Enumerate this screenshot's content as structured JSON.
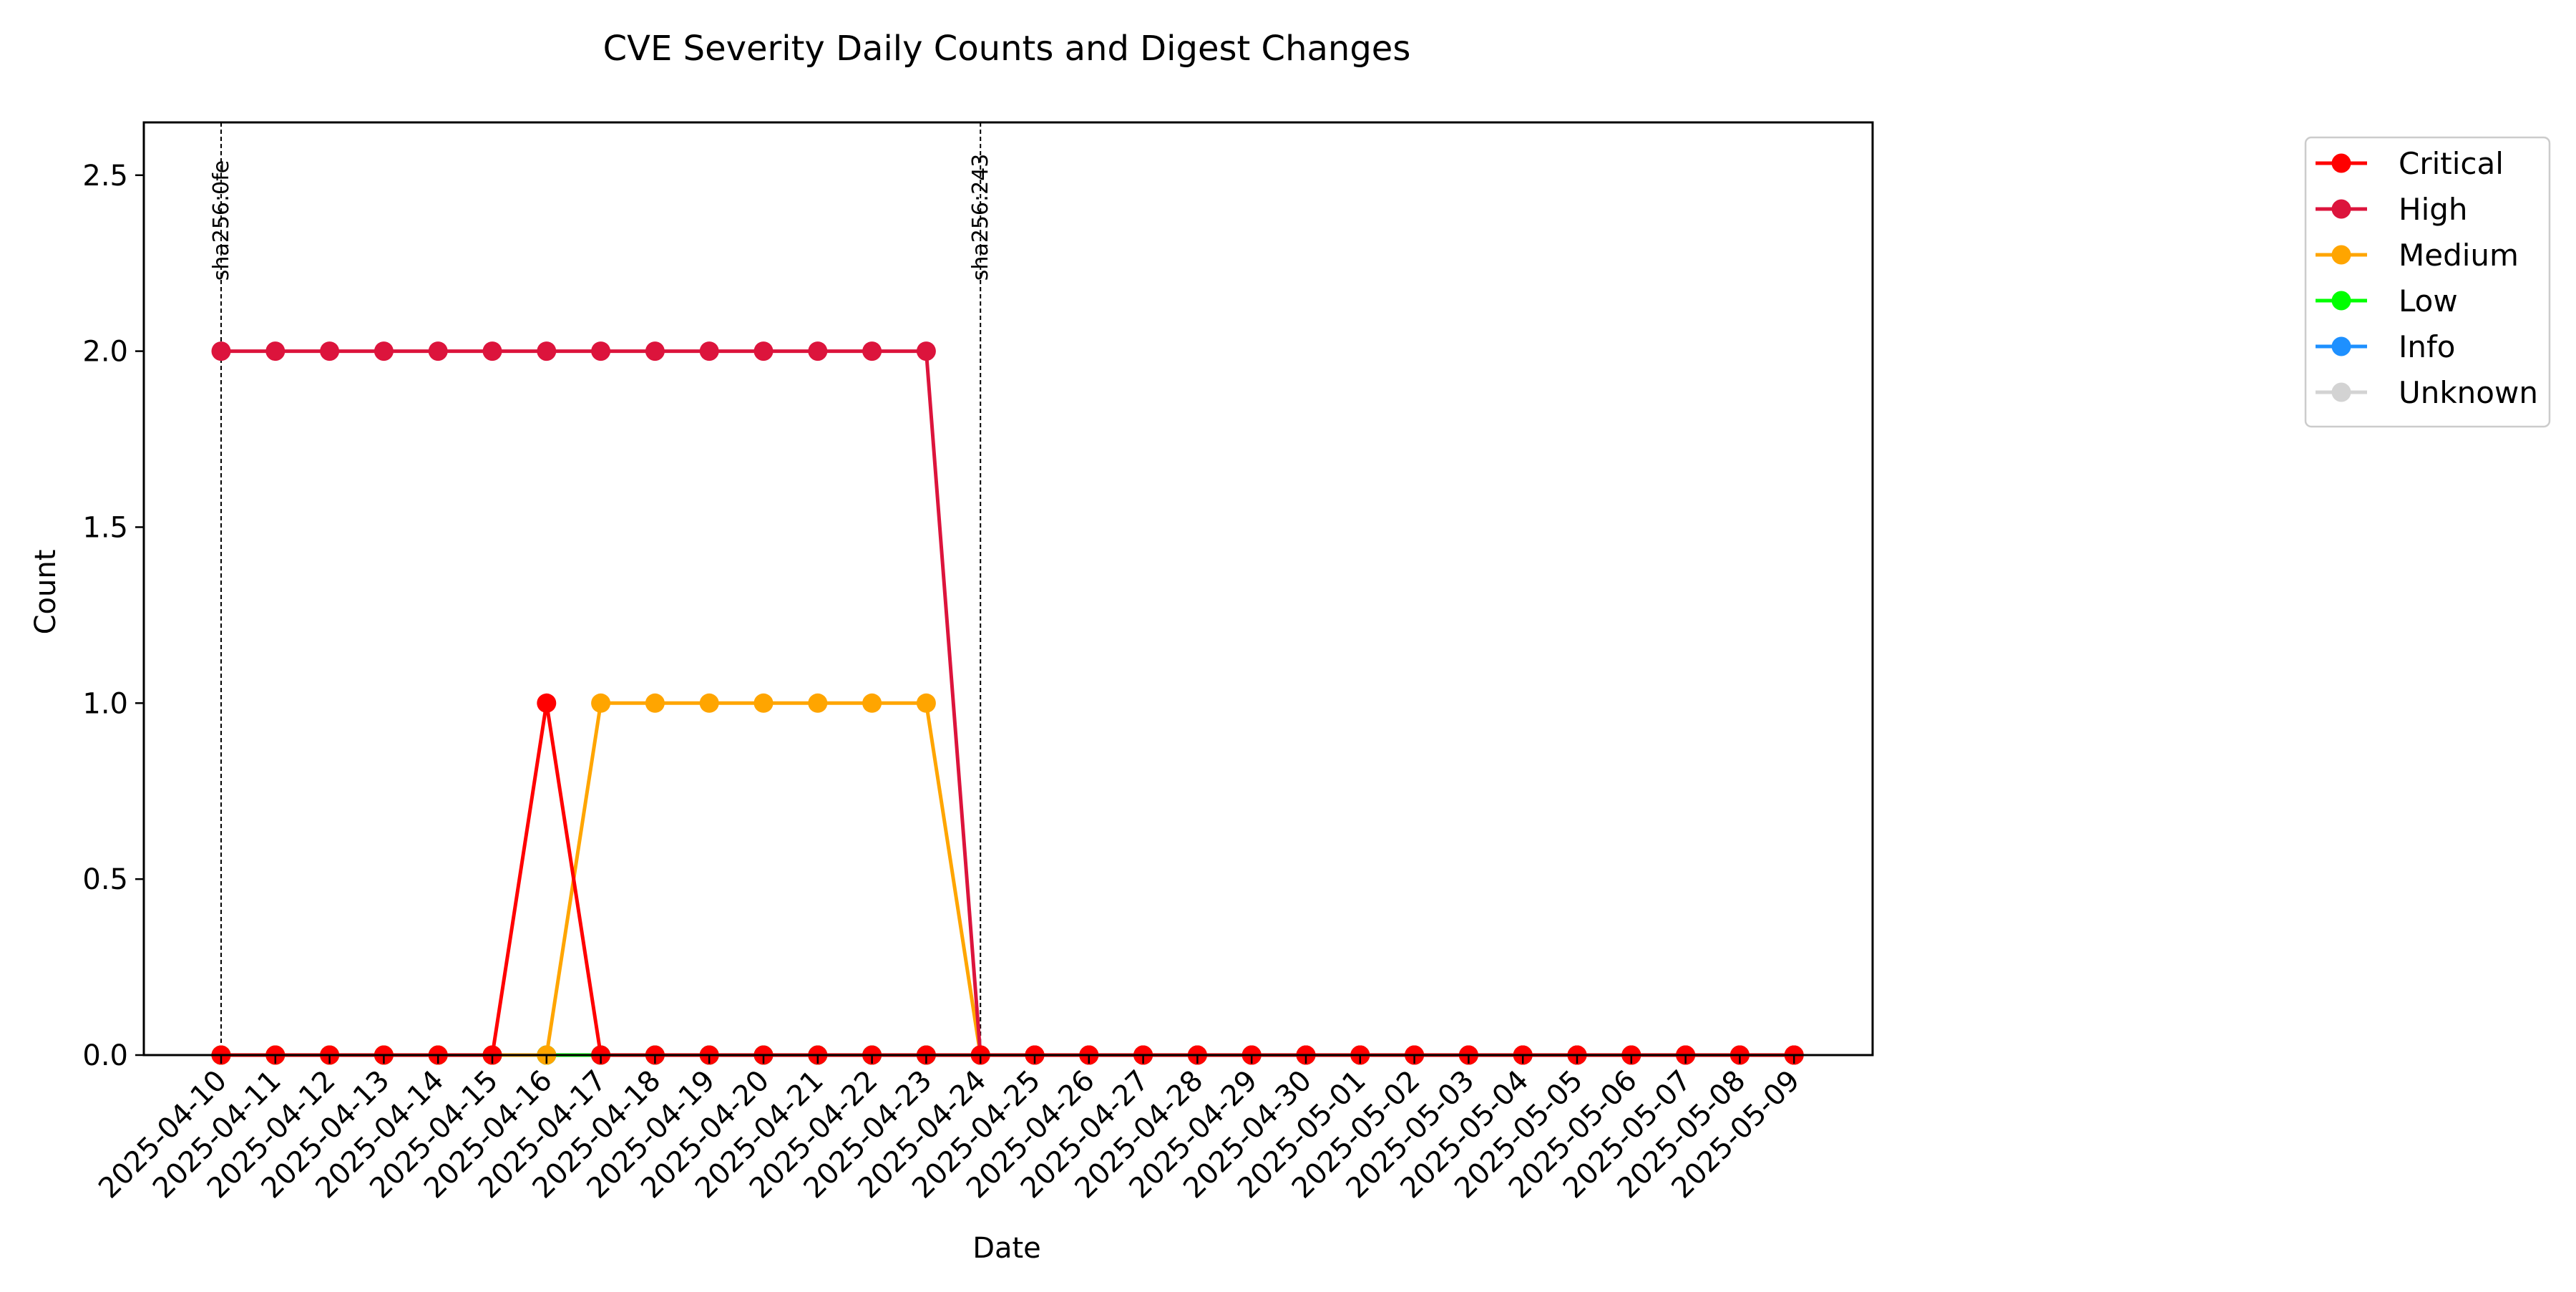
{
  "chart_data": {
    "type": "line",
    "title": "CVE Severity Daily Counts and Digest Changes",
    "xlabel": "Date",
    "ylabel": "Count",
    "ylim": [
      0,
      2.65
    ],
    "yticks": [
      "0.0",
      "0.5",
      "1.0",
      "1.5",
      "2.0",
      "2.5"
    ],
    "grid": false,
    "legend_position": "outside-right",
    "x": [
      "2025-04-10",
      "2025-04-11",
      "2025-04-12",
      "2025-04-13",
      "2025-04-14",
      "2025-04-15",
      "2025-04-16",
      "2025-04-17",
      "2025-04-18",
      "2025-04-19",
      "2025-04-20",
      "2025-04-21",
      "2025-04-22",
      "2025-04-23",
      "2025-04-24",
      "2025-04-25",
      "2025-04-26",
      "2025-04-27",
      "2025-04-28",
      "2025-04-29",
      "2025-04-30",
      "2025-05-01",
      "2025-05-02",
      "2025-05-03",
      "2025-05-04",
      "2025-05-05",
      "2025-05-06",
      "2025-05-07",
      "2025-05-08",
      "2025-05-09"
    ],
    "series": [
      {
        "name": "Critical",
        "color": "#ff0000",
        "values": [
          0,
          0,
          0,
          0,
          0,
          0,
          1,
          0,
          0,
          0,
          0,
          0,
          0,
          0,
          0,
          0,
          0,
          0,
          0,
          0,
          0,
          0,
          0,
          0,
          0,
          0,
          0,
          0,
          0,
          0
        ]
      },
      {
        "name": "High",
        "color": "#dc143c",
        "values": [
          2,
          2,
          2,
          2,
          2,
          2,
          2,
          2,
          2,
          2,
          2,
          2,
          2,
          2,
          0,
          0,
          0,
          0,
          0,
          0,
          0,
          0,
          0,
          0,
          0,
          0,
          0,
          0,
          0,
          0
        ]
      },
      {
        "name": "Medium",
        "color": "#ffa500",
        "values": [
          0,
          0,
          0,
          0,
          0,
          0,
          0,
          1,
          1,
          1,
          1,
          1,
          1,
          1,
          0,
          0,
          0,
          0,
          0,
          0,
          0,
          0,
          0,
          0,
          0,
          0,
          0,
          0,
          0,
          0
        ]
      },
      {
        "name": "Low",
        "color": "#00ff00",
        "values": [
          0,
          0,
          0,
          0,
          0,
          0,
          0,
          0,
          0,
          0,
          0,
          0,
          0,
          0,
          0,
          0,
          0,
          0,
          0,
          0,
          0,
          0,
          0,
          0,
          0,
          0,
          0,
          0,
          0,
          0
        ]
      },
      {
        "name": "Info",
        "color": "#1e90ff",
        "values": [
          0,
          0,
          0,
          0,
          0,
          0,
          0,
          0,
          0,
          0,
          0,
          0,
          0,
          0,
          0,
          0,
          0,
          0,
          0,
          0,
          0,
          0,
          0,
          0,
          0,
          0,
          0,
          0,
          0,
          0
        ]
      },
      {
        "name": "Unknown",
        "color": "#d3d3d3",
        "values": [
          0,
          0,
          0,
          0,
          0,
          0,
          0,
          0,
          0,
          0,
          0,
          0,
          0,
          0,
          0,
          0,
          0,
          0,
          0,
          0,
          0,
          0,
          0,
          0,
          0,
          0,
          0,
          0,
          0,
          0
        ]
      }
    ],
    "annotations": [
      {
        "x": "2025-04-10",
        "label": "sha256:0fe"
      },
      {
        "x": "2025-04-24",
        "label": "sha256:243"
      }
    ]
  }
}
